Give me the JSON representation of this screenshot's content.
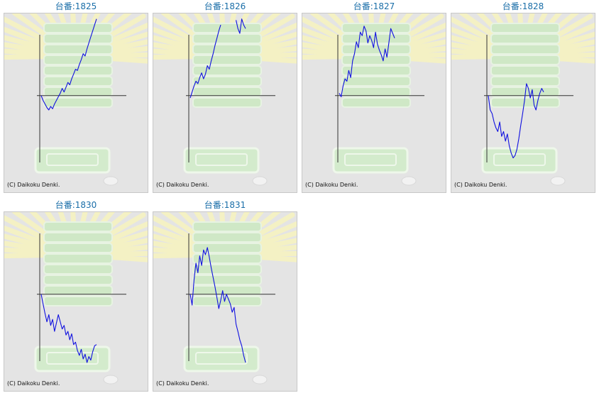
{
  "chart_data": [
    {
      "type": "line",
      "title": "台番:1825",
      "copyright": "(C) Daikoku Denki.",
      "x": [
        0,
        1,
        2,
        3,
        4,
        5,
        6,
        7,
        8,
        9,
        10,
        11,
        12,
        13,
        14,
        15,
        16,
        17,
        18,
        19,
        20,
        21,
        22,
        23,
        24,
        25,
        26,
        27,
        28,
        29
      ],
      "values": [
        0,
        -400,
        -700,
        -1000,
        -1200,
        -900,
        -1100,
        -700,
        -400,
        -100,
        200,
        600,
        300,
        700,
        1100,
        900,
        1400,
        1800,
        2200,
        2100,
        2600,
        3000,
        3500,
        3300,
        3900,
        4400,
        4900,
        5400,
        5900,
        6400
      ],
      "ylim": [
        -5700,
        6500
      ],
      "color": "#1010e0"
    },
    {
      "type": "line",
      "title": "台番:1826",
      "copyright": "(C) Daikoku Denki.",
      "x": [
        0,
        1,
        2,
        3,
        4,
        5,
        6,
        7,
        8,
        9,
        10,
        11,
        12,
        13,
        14,
        15,
        16,
        17,
        18,
        19,
        20,
        21,
        22,
        23,
        24,
        25,
        26,
        27,
        28,
        29
      ],
      "values": [
        -200,
        300,
        800,
        1200,
        1000,
        1500,
        1900,
        1400,
        1800,
        2500,
        2200,
        2900,
        3500,
        4200,
        4800,
        5400,
        5900,
        6500,
        6500,
        6500,
        6500,
        6500,
        6500,
        6500,
        6300,
        5600,
        5200,
        6400,
        5900,
        5600
      ],
      "gaps": [
        16,
        23
      ],
      "ylim": [
        -5700,
        6500
      ],
      "color": "#1010e0"
    },
    {
      "type": "line",
      "title": "台番:1827",
      "copyright": "(C) Daikoku Denki.",
      "x": [
        0,
        1,
        2,
        3,
        4,
        5,
        6,
        7,
        8,
        9,
        10,
        11,
        12,
        13,
        14,
        15,
        16,
        17,
        18,
        19,
        20,
        21,
        22,
        23,
        24,
        25,
        26,
        27,
        28,
        29
      ],
      "values": [
        200,
        -100,
        800,
        1400,
        1200,
        2100,
        1500,
        2900,
        3500,
        4500,
        4000,
        5300,
        5000,
        5800,
        5400,
        4400,
        5000,
        4600,
        4000,
        5300,
        4300,
        3800,
        3400,
        2900,
        3900,
        3200,
        4400,
        5600,
        5200,
        4800
      ],
      "ylim": [
        -5700,
        6500
      ],
      "color": "#1010e0"
    },
    {
      "type": "line",
      "title": "台番:1828",
      "copyright": "(C) Daikoku Denki.",
      "x": [
        0,
        1,
        2,
        3,
        4,
        5,
        6,
        7,
        8,
        9,
        10,
        11,
        12,
        13,
        14,
        15,
        16,
        17,
        18,
        19,
        20,
        21,
        22,
        23,
        24,
        25,
        26,
        27,
        28,
        29
      ],
      "values": [
        0,
        -1200,
        -1500,
        -2200,
        -2700,
        -3000,
        -2200,
        -3400,
        -3000,
        -3800,
        -3200,
        -4200,
        -4800,
        -5200,
        -5000,
        -4500,
        -3600,
        -2500,
        -1500,
        -400,
        1000,
        600,
        -200,
        500,
        -800,
        -1200,
        -400,
        200,
        600,
        300
      ],
      "ylim": [
        -5700,
        6500
      ],
      "color": "#1010e0"
    },
    {
      "type": "line",
      "title": "台番:1830",
      "copyright": "(C) Daikoku Denki.",
      "x": [
        0,
        1,
        2,
        3,
        4,
        5,
        6,
        7,
        8,
        9,
        10,
        11,
        12,
        13,
        14,
        15,
        16,
        17,
        18,
        19,
        20,
        21,
        22,
        23,
        24,
        25,
        26,
        27,
        28,
        29
      ],
      "values": [
        0,
        -800,
        -1600,
        -2300,
        -1700,
        -2600,
        -2100,
        -3100,
        -2400,
        -1700,
        -2300,
        -2900,
        -2600,
        -3400,
        -3100,
        -3800,
        -3300,
        -4200,
        -4000,
        -4700,
        -5100,
        -4600,
        -5400,
        -5000,
        -5700,
        -5200,
        -5500,
        -4800,
        -4300,
        -4200
      ],
      "ylim": [
        -5700,
        6500
      ],
      "color": "#1010e0"
    },
    {
      "type": "line",
      "title": "台番:1831",
      "copyright": "(C) Daikoku Denki.",
      "x": [
        0,
        1,
        2,
        3,
        4,
        5,
        6,
        7,
        8,
        9,
        10,
        11,
        12,
        13,
        14,
        15,
        16,
        17,
        18,
        19,
        20,
        21,
        22,
        23,
        24,
        25,
        26,
        27,
        28,
        29
      ],
      "values": [
        0,
        -900,
        1200,
        2600,
        1800,
        3200,
        2400,
        3700,
        3300,
        3900,
        3100,
        2200,
        1400,
        600,
        -300,
        -1200,
        -500,
        300,
        -600,
        0,
        -400,
        -800,
        -1500,
        -1100,
        -2500,
        -3100,
        -3800,
        -4300,
        -5100,
        -5700
      ],
      "ylim": [
        -5700,
        6500
      ],
      "color": "#1010e0"
    }
  ]
}
